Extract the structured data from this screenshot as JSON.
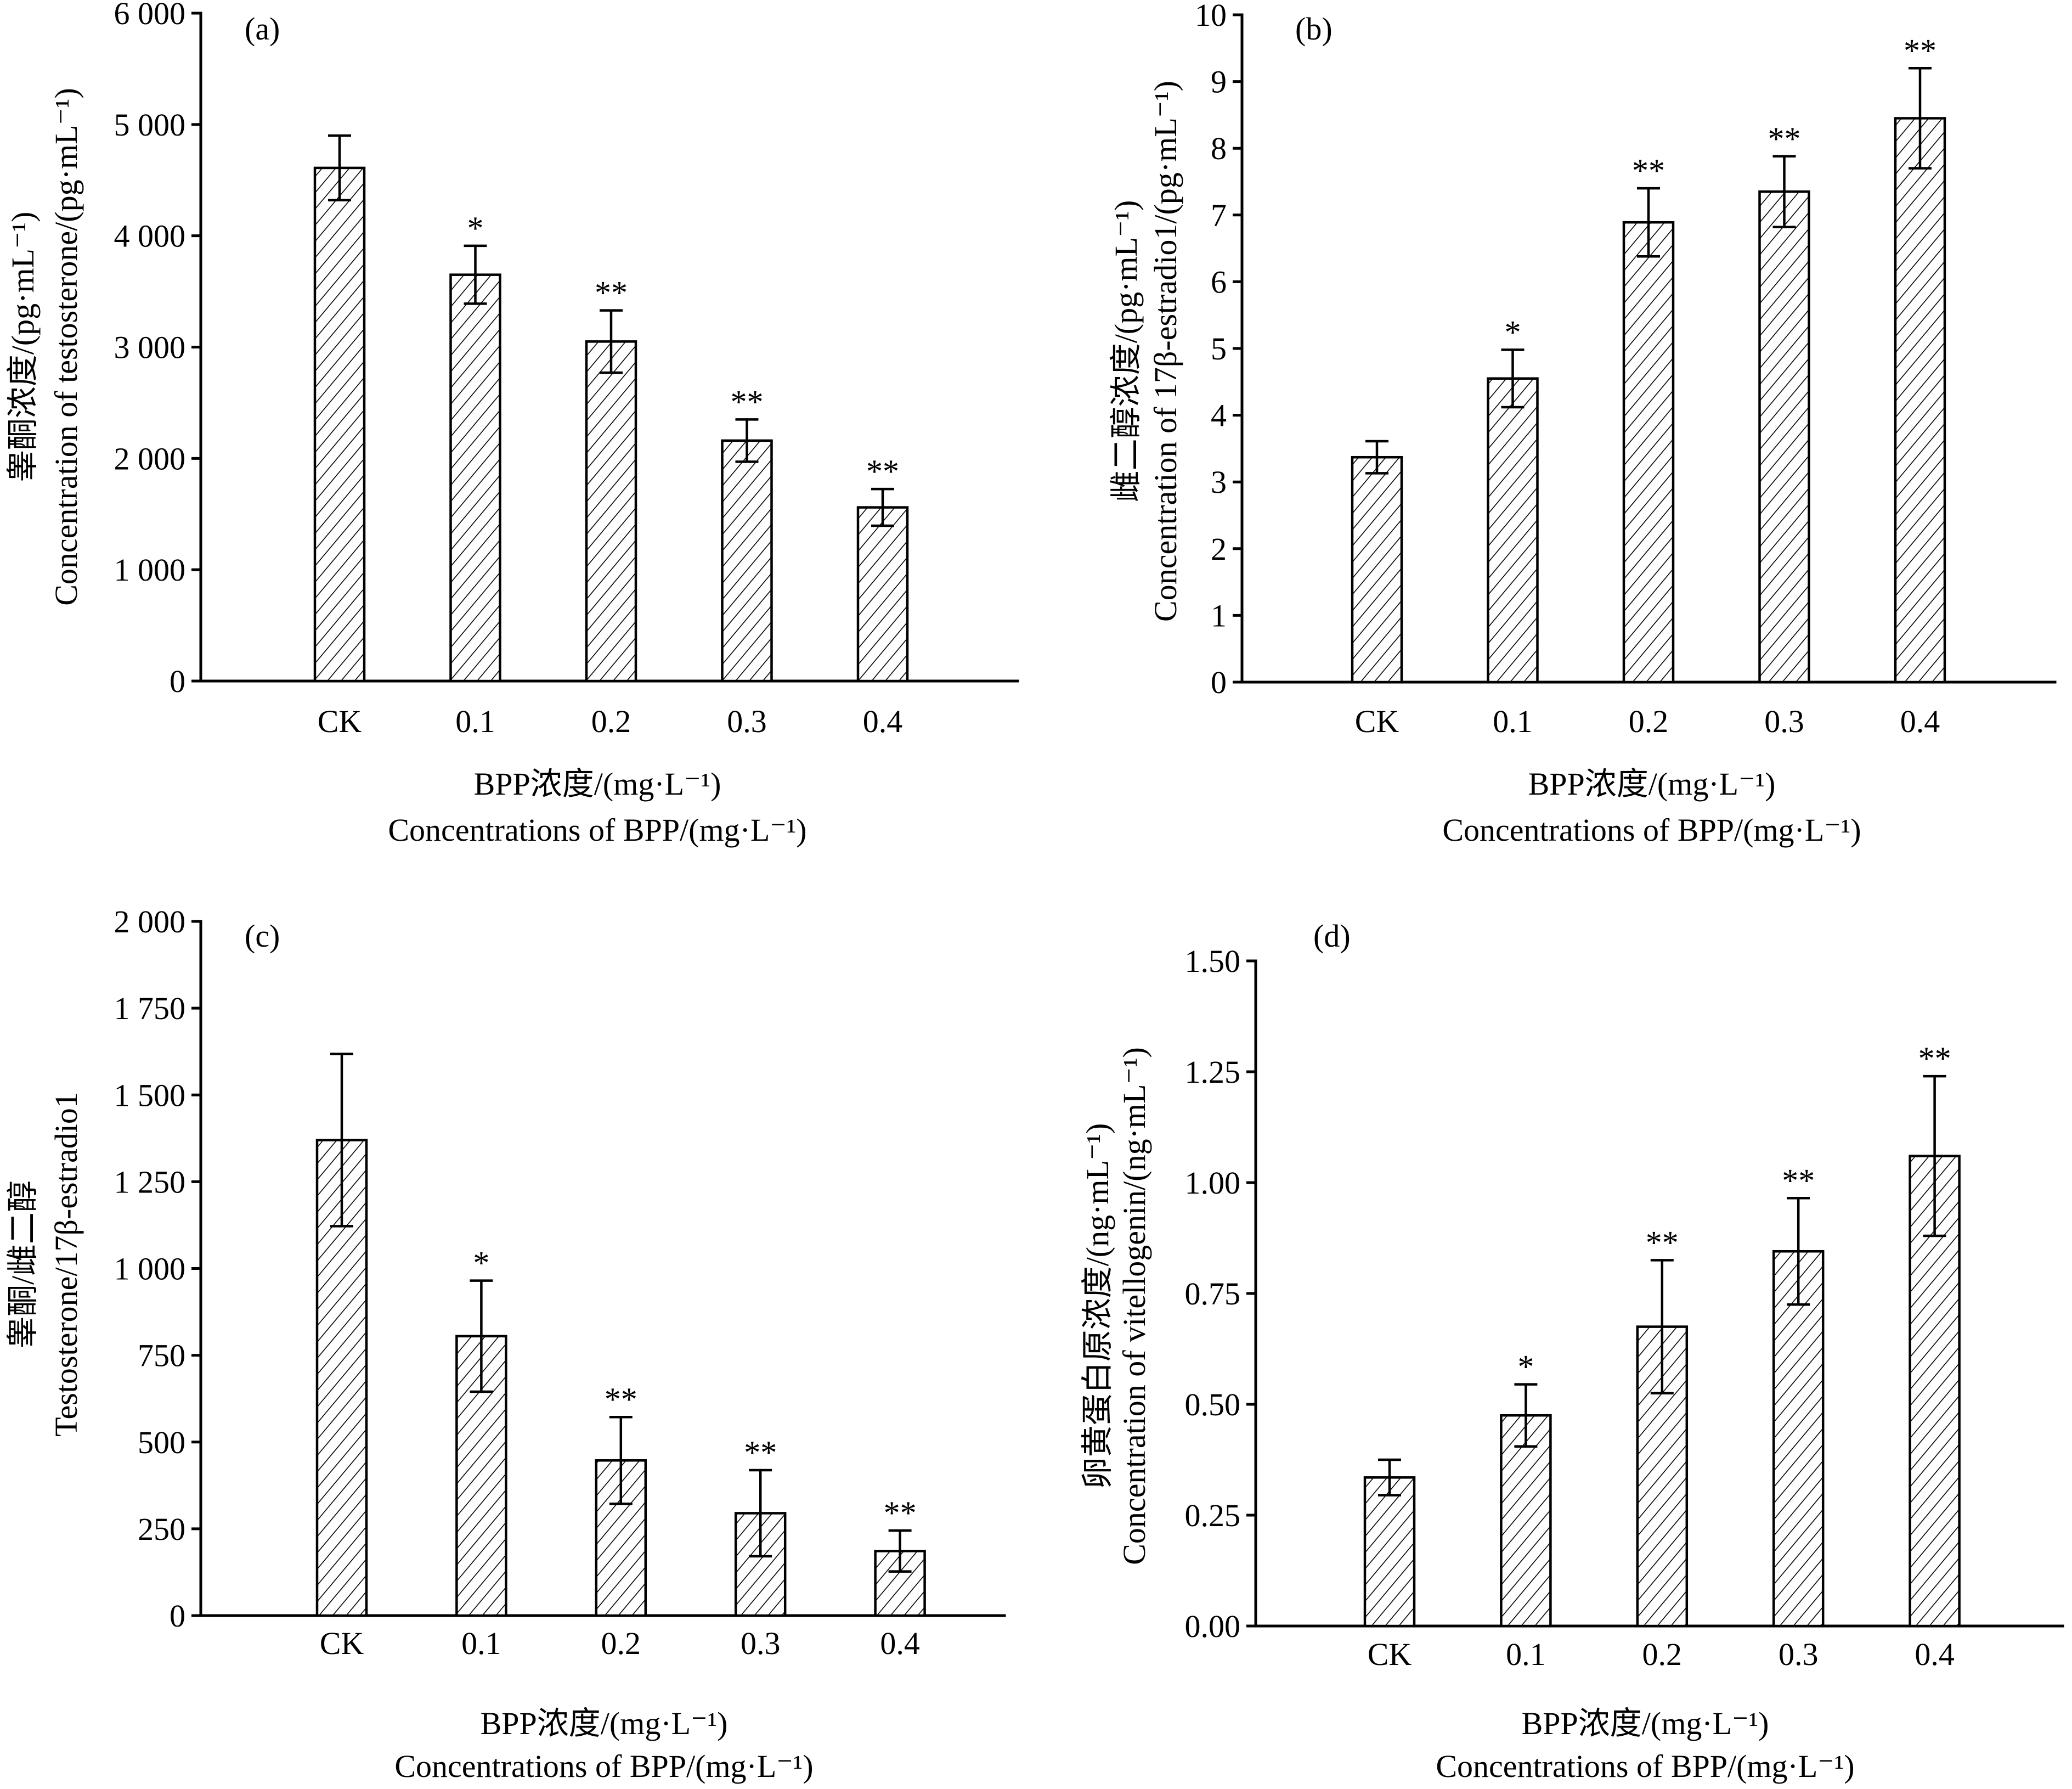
{
  "chart_data": [
    {
      "type": "bar",
      "panel": "(a)",
      "categories": [
        "CK",
        "0.1",
        "0.2",
        "0.3",
        "0.4"
      ],
      "values": [
        4610,
        3650,
        3050,
        2160,
        1560
      ],
      "errors": [
        290,
        260,
        280,
        190,
        165
      ],
      "significance": [
        "",
        "*",
        "**",
        "**",
        "**"
      ],
      "ylabel": [
        "睾酮浓度/(pg·mL⁻¹)",
        "Concentration of testosterone/(pg·mL⁻¹)"
      ],
      "xlabel": [
        "BPP浓度/(mg·L⁻¹)",
        "Concentrations of BPP/(mg·L⁻¹)"
      ],
      "ylim": [
        0,
        6000
      ],
      "yticks": [
        0,
        1000,
        2000,
        3000,
        4000,
        5000,
        6000
      ],
      "ytick_labels": [
        "0",
        "1 000",
        "2 000",
        "3 000",
        "4 000",
        "5 000",
        "6 000"
      ],
      "grid": false,
      "color": "#000000"
    },
    {
      "type": "bar",
      "panel": "(b)",
      "categories": [
        "CK",
        "0.1",
        "0.2",
        "0.3",
        "0.4"
      ],
      "values": [
        3.37,
        4.55,
        6.89,
        7.35,
        8.45
      ],
      "errors": [
        0.24,
        0.43,
        0.51,
        0.53,
        0.75
      ],
      "significance": [
        "",
        "*",
        "**",
        "**",
        "**"
      ],
      "ylabel": [
        "雌二醇浓度/(pg·mL⁻¹)",
        "Concentration of 17β-estradio1/(pg·mL⁻¹)"
      ],
      "xlabel": [
        "BPP浓度/(mg·L⁻¹)",
        "Concentrations of BPP/(mg·L⁻¹)"
      ],
      "ylim": [
        0,
        10
      ],
      "yticks": [
        0,
        1,
        2,
        3,
        4,
        5,
        6,
        7,
        8,
        9,
        10
      ],
      "ytick_labels": [
        "0",
        "1",
        "2",
        "3",
        "4",
        "5",
        "6",
        "7",
        "8",
        "9",
        "10"
      ],
      "grid": false,
      "color": "#000000"
    },
    {
      "type": "bar",
      "panel": "(c)",
      "categories": [
        "CK",
        "0.1",
        "0.2",
        "0.3",
        "0.4"
      ],
      "values": [
        1370,
        805,
        447,
        295,
        186
      ],
      "errors": [
        248,
        160,
        125,
        124,
        59
      ],
      "significance": [
        "",
        "*",
        "**",
        "**",
        "**"
      ],
      "ylabel": [
        "睾酮/雌二醇",
        "Testosterone/17β-estradio1"
      ],
      "xlabel": [
        "BPP浓度/(mg·L⁻¹)",
        "Concentrations of BPP/(mg·L⁻¹)"
      ],
      "ylim": [
        0,
        2000
      ],
      "yticks": [
        0,
        250,
        500,
        750,
        1000,
        1250,
        1500,
        1750,
        2000
      ],
      "ytick_labels": [
        "0",
        "250",
        "500",
        "750",
        "1 000",
        "1 250",
        "1 500",
        "1 750",
        "2 000"
      ],
      "grid": false,
      "color": "#000000"
    },
    {
      "type": "bar",
      "panel": "(d)",
      "categories": [
        "CK",
        "0.1",
        "0.2",
        "0.3",
        "0.4"
      ],
      "values": [
        0.335,
        0.475,
        0.675,
        0.845,
        1.06
      ],
      "errors": [
        0.04,
        0.07,
        0.15,
        0.12,
        0.18
      ],
      "significance": [
        "",
        "*",
        "**",
        "**",
        "**"
      ],
      "ylabel": [
        "卵黄蛋白原浓度/(ng·mL⁻¹)",
        "Concentration of vitellogenin/(ng·mL⁻¹)"
      ],
      "xlabel": [
        "BPP浓度/(mg·L⁻¹)",
        "Concentrations of BPP/(mg·L⁻¹)"
      ],
      "ylim": [
        0,
        1.5
      ],
      "yticks": [
        0,
        0.25,
        0.5,
        0.75,
        1.0,
        1.25,
        1.5
      ],
      "ytick_labels": [
        "0.00",
        "0.25",
        "0.50",
        "0.75",
        "1.00",
        "1.25",
        "1.50"
      ],
      "grid": false,
      "color": "#000000"
    }
  ]
}
